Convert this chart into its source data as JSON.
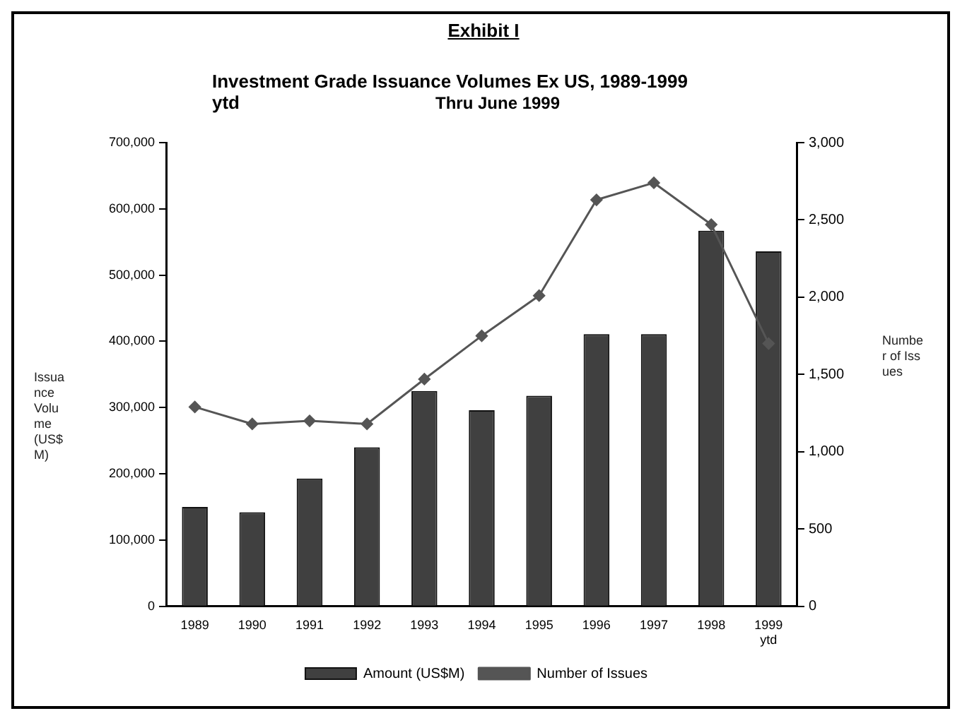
{
  "chart_data": {
    "type": "bar",
    "title": "Investment Grade Issuance Volumes Ex US, 1989-1999 ytd",
    "subtitle": "Thru June 1999",
    "annotations": [
      "Exhibit I"
    ],
    "ylabel": "Issuance Volume (US$ M)",
    "y2label": "Number of Issues",
    "categories": [
      "1989",
      "1990",
      "1991",
      "1992",
      "1993",
      "1994",
      "1995",
      "1996",
      "1997",
      "1998",
      "1999 ytd"
    ],
    "series": [
      {
        "name": "Amount (US$M)",
        "color": "#404040",
        "values": [
          150000,
          142000,
          193000,
          240000,
          325000,
          296000,
          318000,
          411000,
          411000,
          567000,
          536000
        ]
      },
      {
        "name": "Number of Issues",
        "type": "line",
        "axis": "y2",
        "color": "#555555",
        "values": [
          1290,
          1180,
          1200,
          1180,
          1470,
          1750,
          2010,
          2630,
          2740,
          2470,
          1700
        ]
      }
    ],
    "ylim": [
      0,
      700000
    ],
    "yticks": [
      {
        "value": 0,
        "label": "0"
      },
      {
        "value": 100000,
        "label": "100,000"
      },
      {
        "value": 200000,
        "label": "200,000"
      },
      {
        "value": 300000,
        "label": "300,000"
      },
      {
        "value": 400000,
        "label": "400,000"
      },
      {
        "value": 500000,
        "label": "500,000"
      },
      {
        "value": 600000,
        "label": "600,000"
      },
      {
        "value": 700000,
        "label": "700,000"
      }
    ],
    "y2lim": [
      0,
      3000
    ],
    "y2ticks": [
      {
        "value": 0,
        "label": "0"
      },
      {
        "value": 500,
        "label": "500"
      },
      {
        "value": 1000,
        "label": "1,000"
      },
      {
        "value": 1500,
        "label": "1,500"
      },
      {
        "value": 2000,
        "label": "2,000"
      },
      {
        "value": 2500,
        "label": "2,500"
      },
      {
        "value": 3000,
        "label": "3,000"
      }
    ],
    "grid": false,
    "legend": "bottom",
    "marker": "diamond",
    "line_style": "solid"
  }
}
